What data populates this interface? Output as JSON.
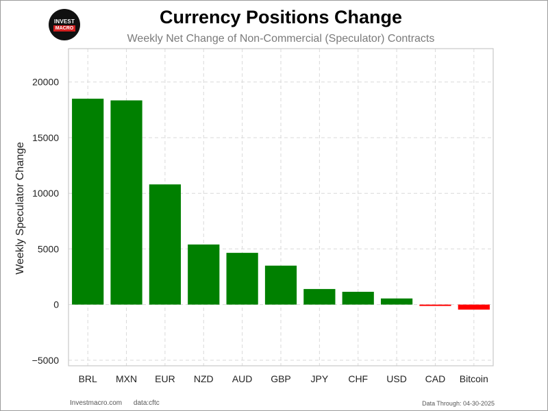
{
  "logo": {
    "line1": "INVEST",
    "line2": "MACRO"
  },
  "chart_data": {
    "type": "bar",
    "title": "Currency Positions Change",
    "subtitle": "Weekly Net Change of Non-Commercial (Speculator) Contracts",
    "xlabel": "",
    "ylabel": "Weekly Speculator Change",
    "categories": [
      "BRL",
      "MXN",
      "EUR",
      "NZD",
      "AUD",
      "GBP",
      "JPY",
      "CHF",
      "USD",
      "CAD",
      "Bitcoin"
    ],
    "values": [
      18500,
      18350,
      10800,
      5400,
      4650,
      3500,
      1400,
      1150,
      550,
      -50,
      -450
    ],
    "bar_colors": [
      "#008000",
      "#008000",
      "#008000",
      "#008000",
      "#008000",
      "#008000",
      "#008000",
      "#008000",
      "#008000",
      "#ff0000",
      "#ff0000"
    ],
    "ylim": [
      -5500,
      23000
    ],
    "yticks": [
      -5000,
      0,
      5000,
      10000,
      15000,
      20000
    ],
    "ytick_labels": [
      "−5000",
      "0",
      "5000",
      "10000",
      "15000",
      "20000"
    ],
    "grid": true,
    "legend": "none"
  },
  "footer": {
    "site": "Investmacro.com",
    "source": "data:cftc",
    "data_through": "Data Through: 04-30-2025"
  }
}
